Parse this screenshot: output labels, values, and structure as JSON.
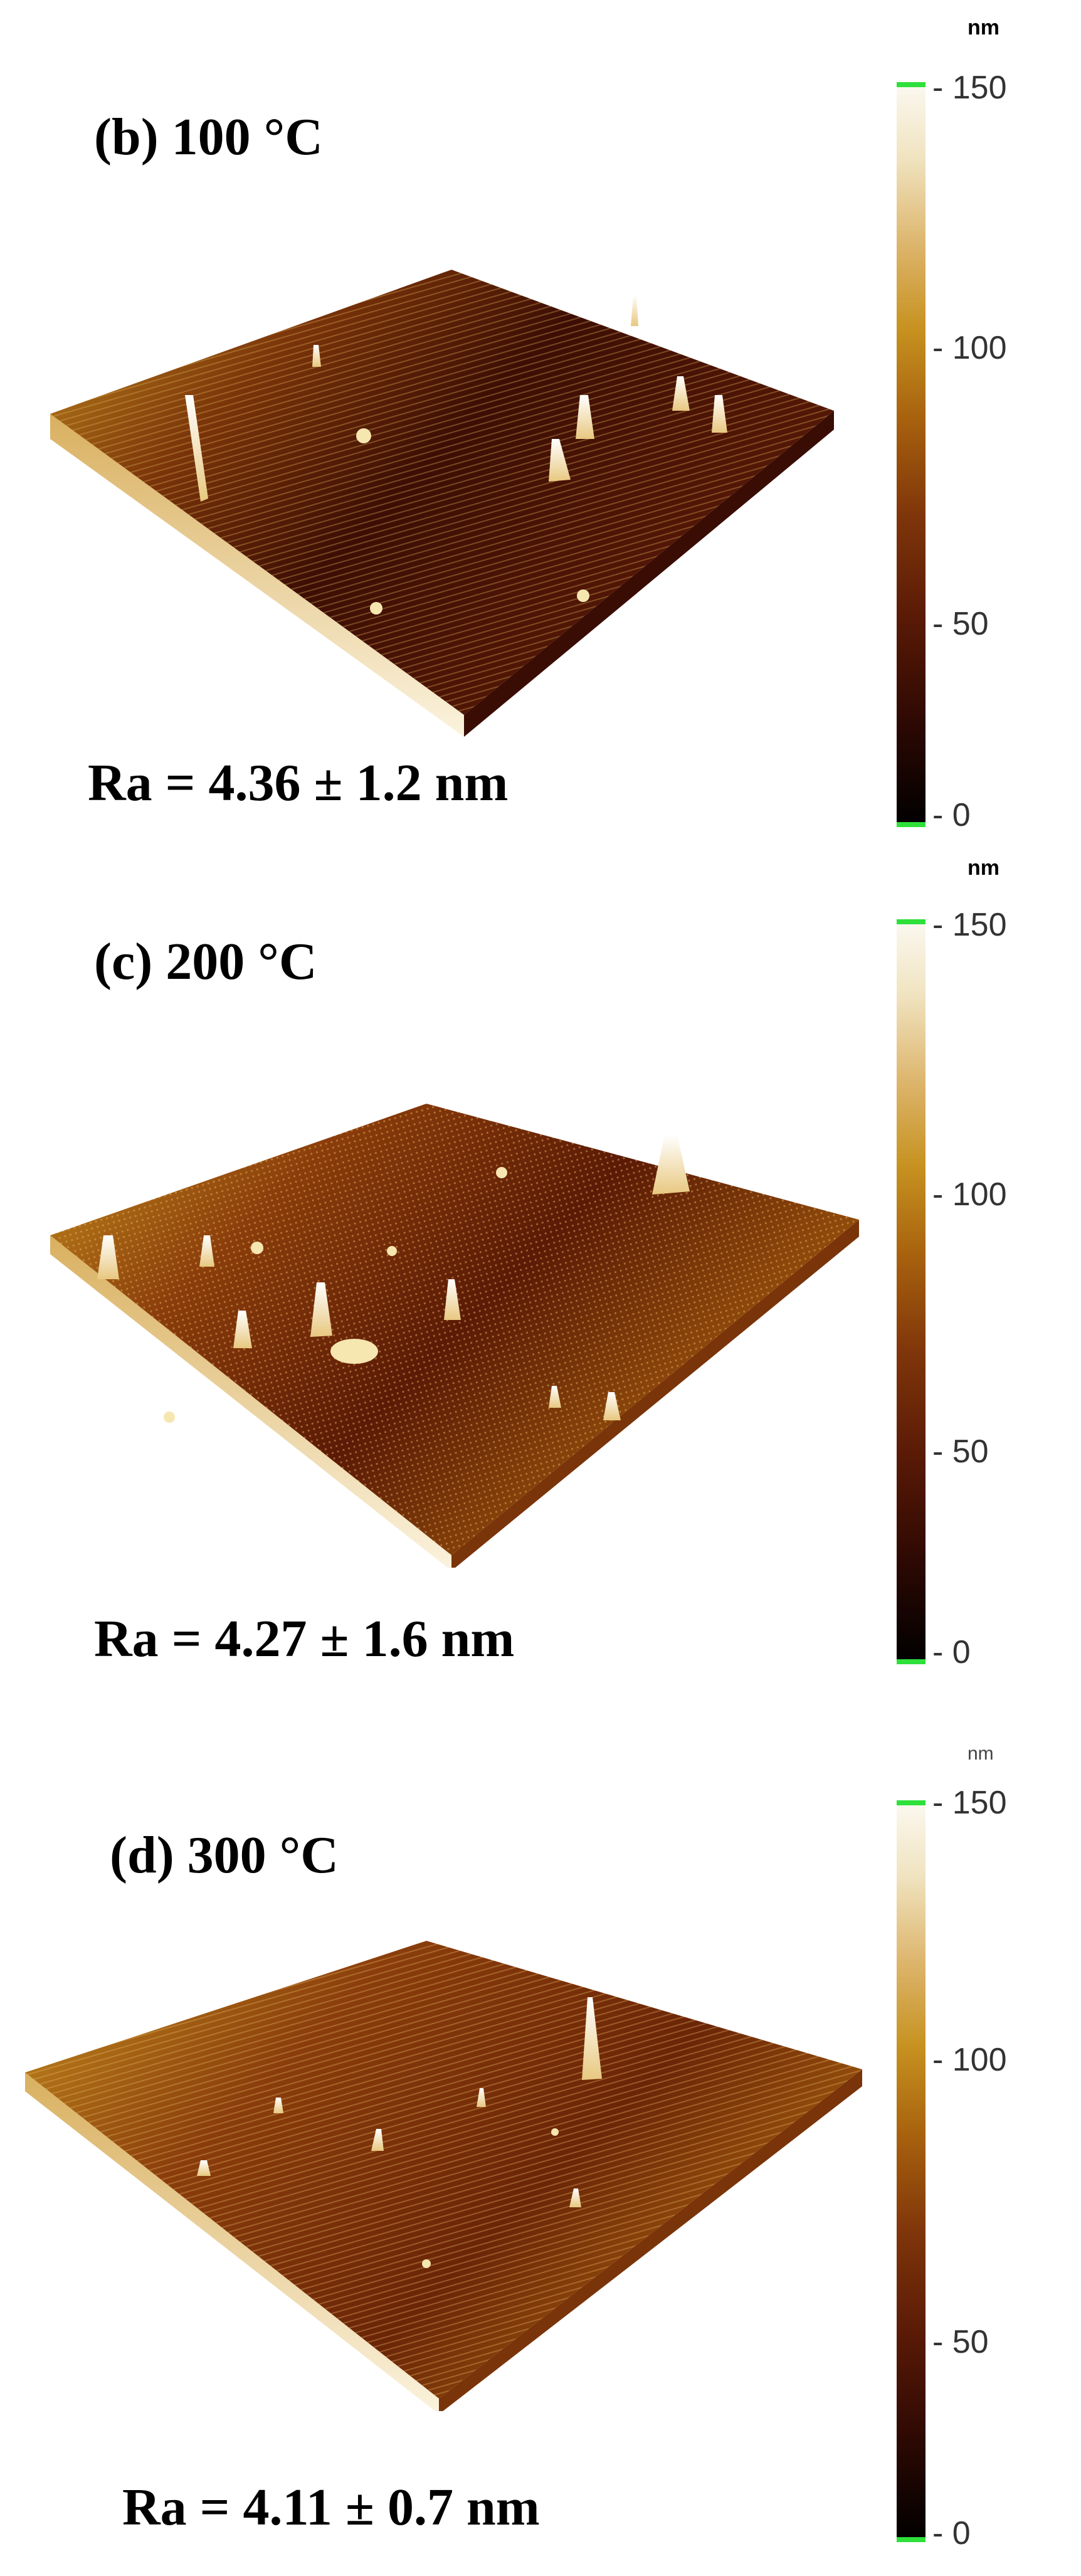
{
  "panels": [
    {
      "label": "(b) 100 °C",
      "roughness": "Ra = 4.36 ± 1.2 nm",
      "colorbar": {
        "unit": "nm",
        "ticks": [
          "150",
          "100",
          "50",
          "0"
        ]
      }
    },
    {
      "label": "(c) 200 °C",
      "roughness": "Ra = 4.27 ± 1.6 nm",
      "colorbar": {
        "unit": "nm",
        "ticks": [
          "150",
          "100",
          "50",
          "0"
        ]
      }
    },
    {
      "label": "(d) 300 °C",
      "roughness": "Ra = 4.11 ± 0.7 nm",
      "colorbar": {
        "unit": "nm",
        "ticks": [
          "150",
          "100",
          "50",
          "0"
        ]
      }
    }
  ],
  "colors": {
    "colorbar_scale": [
      "#000000",
      "#5a1a06",
      "#a8620e",
      "#c79220",
      "#f0e3bf",
      "#fbf8f0"
    ],
    "colorbar_end_marker": "#2ee03a"
  }
}
